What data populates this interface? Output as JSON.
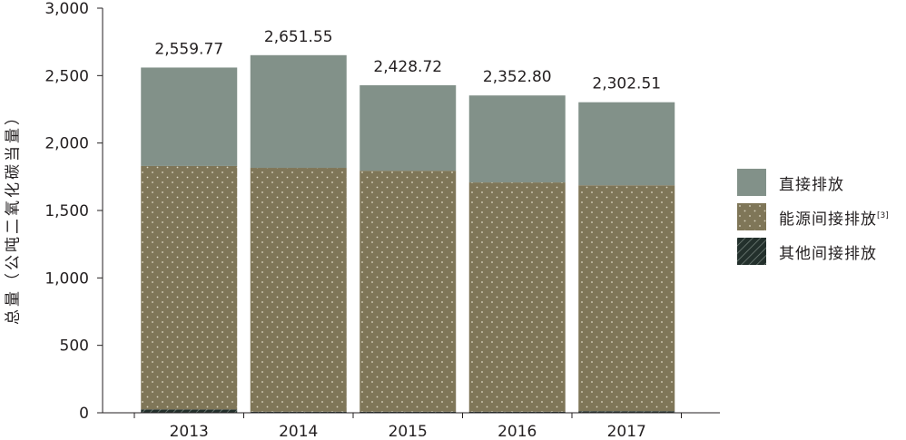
{
  "chart_data": {
    "type": "bar",
    "stacked": true,
    "categories": [
      "2013",
      "2014",
      "2015",
      "2016",
      "2017"
    ],
    "series": [
      {
        "name": "其他间接排放",
        "values": [
          25,
          8,
          8,
          8,
          12
        ],
        "color": "#23302c",
        "pattern": "hatch"
      },
      {
        "name": "能源间接排放",
        "values": [
          1805,
          1808,
          1787,
          1700,
          1675
        ],
        "color": "#7f7658",
        "pattern": "dots"
      },
      {
        "name": "直接排放",
        "values": [
          729.77,
          835.55,
          633.72,
          644.8,
          615.51
        ],
        "color": "#829189",
        "pattern": "solid"
      }
    ],
    "totals": [
      2559.77,
      2651.55,
      2428.72,
      2352.8,
      2302.51
    ],
    "total_labels": [
      "2,559.77",
      "2,651.55",
      "2,428.72",
      "2,352.80",
      "2,302.51"
    ],
    "ylabel": "总量（公吨二氧化碳当量）",
    "ylim": [
      0,
      3000
    ],
    "yticks": [
      0,
      500,
      1000,
      1500,
      2000,
      2500,
      3000
    ],
    "ytick_labels": [
      "0",
      "500",
      "1,000",
      "1,500",
      "2,000",
      "2,500",
      "3,000"
    ],
    "grid": false,
    "legend_position": "right"
  },
  "legend": [
    {
      "label": "直接排放",
      "note": "",
      "swatch": "solid"
    },
    {
      "label": "能源间接排放",
      "note": "[3]",
      "swatch": "dots"
    },
    {
      "label": "其他间接排放",
      "note": "",
      "swatch": "hatch"
    }
  ]
}
